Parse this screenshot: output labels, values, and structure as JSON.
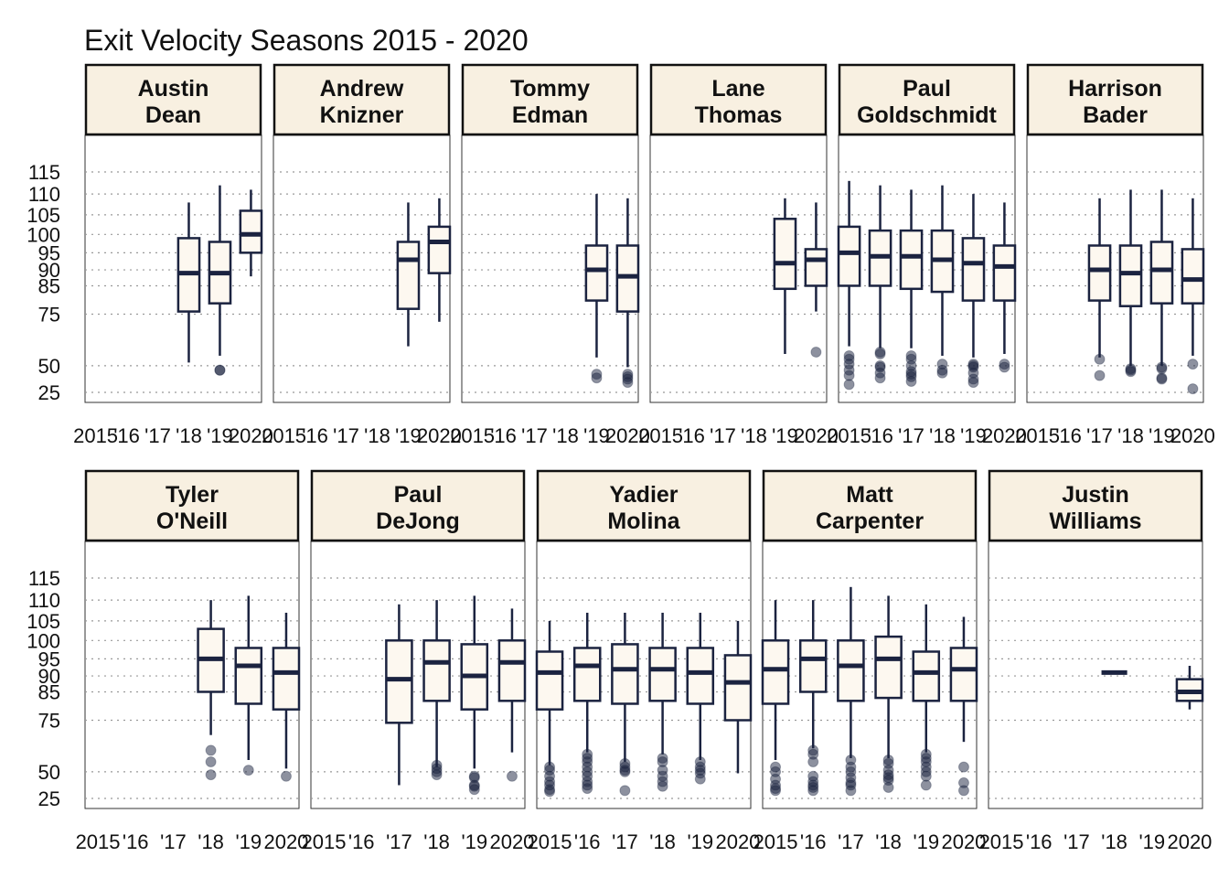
{
  "chart_data": {
    "type": "box",
    "title": "Exit Velocity Seasons 2015 - 2020",
    "xlabel": "",
    "ylabel": "",
    "x_tick_labels_top": [
      "2015",
      "'16",
      "'17",
      "'18",
      "'19",
      "2020"
    ],
    "x_tick_labels_bottom": [
      "2015",
      "'16",
      "'17",
      "'18",
      "'19",
      "2020"
    ],
    "y_ticks": [
      25,
      50,
      75,
      85,
      90,
      95,
      100,
      105,
      110,
      115
    ],
    "y_tick_labels": [
      "25",
      "50",
      "75",
      "85",
      "90",
      "95",
      "100",
      "105",
      "110",
      "115"
    ],
    "y_scale": "power",
    "ylim": [
      20,
      120
    ],
    "grid": "horizontal-dotted",
    "colors": {
      "strip_fill": "#f8f0e1",
      "box_fill": "#fdf8f0",
      "line": "#1b2340",
      "outlier": "#1b2340",
      "grid": "#999999"
    },
    "panels": [
      {
        "name": "Austin\nDean",
        "row": 0,
        "seasons": [
          {
            "year": "'18",
            "whisker_low": 52,
            "q1": 76,
            "median": 89,
            "q3": 99,
            "whisker_high": 108,
            "outliers": []
          },
          {
            "year": "'19",
            "whisker_low": 56,
            "q1": 79,
            "median": 89,
            "q3": 98,
            "whisker_high": 112,
            "outliers": [
              47,
              47
            ]
          },
          {
            "year": "2020",
            "whisker_low": 88,
            "q1": 95,
            "median": 100,
            "q3": 106,
            "whisker_high": 111,
            "outliers": []
          }
        ]
      },
      {
        "name": "Andrew\nKnizner",
        "row": 0,
        "seasons": [
          {
            "year": "'19",
            "whisker_low": 61,
            "q1": 77,
            "median": 93,
            "q3": 98,
            "whisker_high": 108,
            "outliers": []
          },
          {
            "year": "2020",
            "whisker_low": 72,
            "q1": 89,
            "median": 98,
            "q3": 102,
            "whisker_high": 109,
            "outliers": []
          }
        ]
      },
      {
        "name": "Tommy\nEdman",
        "row": 0,
        "seasons": [
          {
            "year": "'19",
            "whisker_low": 55,
            "q1": 80,
            "median": 90,
            "q3": 97,
            "whisker_high": 110,
            "outliers": [
              44,
              41
            ]
          },
          {
            "year": "2020",
            "whisker_low": 49,
            "q1": 76,
            "median": 88,
            "q3": 97,
            "whisker_high": 109,
            "outliers": [
              44,
              42,
              40,
              37
            ]
          }
        ]
      },
      {
        "name": "Lane\nThomas",
        "row": 0,
        "seasons": [
          {
            "year": "'19",
            "whisker_low": 57,
            "q1": 84,
            "median": 92,
            "q3": 104,
            "whisker_high": 109,
            "outliers": []
          },
          {
            "year": "2020",
            "whisker_low": 76,
            "q1": 85,
            "median": 93,
            "q3": 96,
            "whisker_high": 108,
            "outliers": [
              58
            ]
          }
        ]
      },
      {
        "name": "Paul\nGoldschmidt",
        "row": 0,
        "seasons": [
          {
            "year": "2015",
            "whisker_low": 61,
            "q1": 85,
            "median": 95,
            "q3": 102,
            "whisker_high": 113,
            "outliers": [
              56,
              54,
              51,
              47,
              43,
              35
            ]
          },
          {
            "year": "'16",
            "whisker_low": 60,
            "q1": 85,
            "median": 94,
            "q3": 101,
            "whisker_high": 112,
            "outliers": [
              58,
              57,
              50,
              49,
              45,
              41
            ]
          },
          {
            "year": "'17",
            "whisker_low": 60,
            "q1": 84,
            "median": 94,
            "q3": 101,
            "whisker_high": 111,
            "outliers": [
              56,
              54,
              50,
              46,
              44,
              42,
              38
            ]
          },
          {
            "year": "'18",
            "whisker_low": 56,
            "q1": 83,
            "median": 93,
            "q3": 101,
            "whisker_high": 112,
            "outliers": [
              51,
              47,
              45
            ]
          },
          {
            "year": "'19",
            "whisker_low": 55,
            "q1": 80,
            "median": 92,
            "q3": 99,
            "whisker_high": 110,
            "outliers": [
              51,
              50,
              49,
              45,
              40,
              37
            ]
          },
          {
            "year": "2020",
            "whisker_low": 57,
            "q1": 80,
            "median": 91,
            "q3": 97,
            "whisker_high": 108,
            "outliers": [
              51,
              49
            ]
          }
        ]
      },
      {
        "name": "Harrison\nBader",
        "row": 0,
        "seasons": [
          {
            "year": "'17",
            "whisker_low": 55,
            "q1": 80,
            "median": 90,
            "q3": 97,
            "whisker_high": 109,
            "outliers": [
              54,
              43
            ]
          },
          {
            "year": "'18",
            "whisker_low": 50,
            "q1": 78,
            "median": 89,
            "q3": 97,
            "whisker_high": 111,
            "outliers": [
              48,
              47,
              46
            ]
          },
          {
            "year": "'19",
            "whisker_low": 50,
            "q1": 79,
            "median": 90,
            "q3": 98,
            "whisker_high": 111,
            "outliers": [
              49,
              48,
              41,
              40
            ]
          },
          {
            "year": "2020",
            "whisker_low": 56,
            "q1": 79,
            "median": 87,
            "q3": 96,
            "whisker_high": 109,
            "outliers": [
              51,
              30
            ]
          }
        ]
      },
      {
        "name": "Tyler\nO'Neill",
        "row": 1,
        "seasons": [
          {
            "year": "'18",
            "whisker_low": 69,
            "q1": 85,
            "median": 95,
            "q3": 103,
            "whisker_high": 110,
            "outliers": [
              62,
              56,
              48
            ]
          },
          {
            "year": "'19",
            "whisker_low": 57,
            "q1": 81,
            "median": 93,
            "q3": 98,
            "whisker_high": 111,
            "outliers": [
              51
            ]
          },
          {
            "year": "2020",
            "whisker_low": 52,
            "q1": 79,
            "median": 91,
            "q3": 98,
            "whisker_high": 107,
            "outliers": [
              47
            ]
          }
        ]
      },
      {
        "name": "Paul\nDeJong",
        "row": 1,
        "seasons": [
          {
            "year": "'17",
            "whisker_low": 40,
            "q1": 74,
            "median": 89,
            "q3": 100,
            "whisker_high": 109,
            "outliers": []
          },
          {
            "year": "'18",
            "whisker_low": 53,
            "q1": 82,
            "median": 94,
            "q3": 100,
            "whisker_high": 110,
            "outliers": [
              54,
              52,
              50,
              48
            ]
          },
          {
            "year": "'19",
            "whisker_low": 52,
            "q1": 79,
            "median": 90,
            "q3": 99,
            "whisker_high": 111,
            "outliers": [
              47,
              46,
              40,
              39,
              36
            ]
          },
          {
            "year": "2020",
            "whisker_low": 61,
            "q1": 82,
            "median": 94,
            "q3": 100,
            "whisker_high": 108,
            "outliers": [
              47
            ]
          }
        ]
      },
      {
        "name": "Yadier\nMolina",
        "row": 1,
        "seasons": [
          {
            "year": "2015",
            "whisker_low": 54,
            "q1": 79,
            "median": 91,
            "q3": 97,
            "whisker_high": 105,
            "outliers": [
              53,
              51,
              47,
              43,
              40,
              36,
              34
            ]
          },
          {
            "year": "'16",
            "whisker_low": 61,
            "q1": 82,
            "median": 93,
            "q3": 98,
            "whisker_high": 107,
            "outliers": [
              60,
              58,
              56,
              53,
              50,
              47,
              43,
              40,
              37
            ]
          },
          {
            "year": "'17",
            "whisker_low": 56,
            "q1": 81,
            "median": 92,
            "q3": 99,
            "whisker_high": 107,
            "outliers": [
              55,
              53,
              51,
              50,
              35
            ]
          },
          {
            "year": "'18",
            "whisker_low": 60,
            "q1": 82,
            "median": 92,
            "q3": 98,
            "whisker_high": 107,
            "outliers": [
              58,
              56,
              51,
              47,
              43,
              39
            ]
          },
          {
            "year": "'19",
            "whisker_low": 57,
            "q1": 81,
            "median": 91,
            "q3": 98,
            "whisker_high": 107,
            "outliers": [
              56,
              53,
              51,
              49,
              45
            ]
          },
          {
            "year": "2020",
            "whisker_low": 49,
            "q1": 75,
            "median": 88,
            "q3": 96,
            "whisker_high": 105,
            "outliers": []
          }
        ]
      },
      {
        "name": "Matt\nCarpenter",
        "row": 1,
        "seasons": [
          {
            "year": "2015",
            "whisker_low": 57,
            "q1": 81,
            "median": 92,
            "q3": 100,
            "whisker_high": 110,
            "outliers": [
              53,
              50,
              45,
              40,
              37,
              35
            ]
          },
          {
            "year": "'16",
            "whisker_low": 63,
            "q1": 85,
            "median": 95,
            "q3": 100,
            "whisker_high": 110,
            "outliers": [
              62,
              60,
              56,
              47,
              43,
              40,
              38,
              35
            ]
          },
          {
            "year": "'17",
            "whisker_low": 58,
            "q1": 82,
            "median": 93,
            "q3": 100,
            "whisker_high": 113,
            "outliers": [
              57,
              53,
              50,
              46,
              42,
              40,
              35
            ]
          },
          {
            "year": "'18",
            "whisker_low": 58,
            "q1": 83,
            "median": 95,
            "q3": 101,
            "whisker_high": 111,
            "outliers": [
              57,
              55,
              51,
              48,
              46,
              44,
              38
            ]
          },
          {
            "year": "'19",
            "whisker_low": 61,
            "q1": 82,
            "median": 91,
            "q3": 97,
            "whisker_high": 109,
            "outliers": [
              60,
              58,
              56,
              53,
              50,
              47,
              40
            ]
          },
          {
            "year": "2020",
            "whisker_low": 66,
            "q1": 82,
            "median": 92,
            "q3": 98,
            "whisker_high": 106,
            "outliers": [
              53,
              42,
              35
            ]
          }
        ]
      },
      {
        "name": "Justin\nWilliams",
        "row": 1,
        "seasons": [
          {
            "year": "'18",
            "whisker_low": 91,
            "q1": 91,
            "median": 91,
            "q3": 91,
            "whisker_high": 91,
            "outliers": []
          },
          {
            "year": "2020",
            "whisker_low": 79,
            "q1": 82,
            "median": 85,
            "q3": 89,
            "whisker_high": 93,
            "outliers": []
          }
        ]
      }
    ]
  }
}
